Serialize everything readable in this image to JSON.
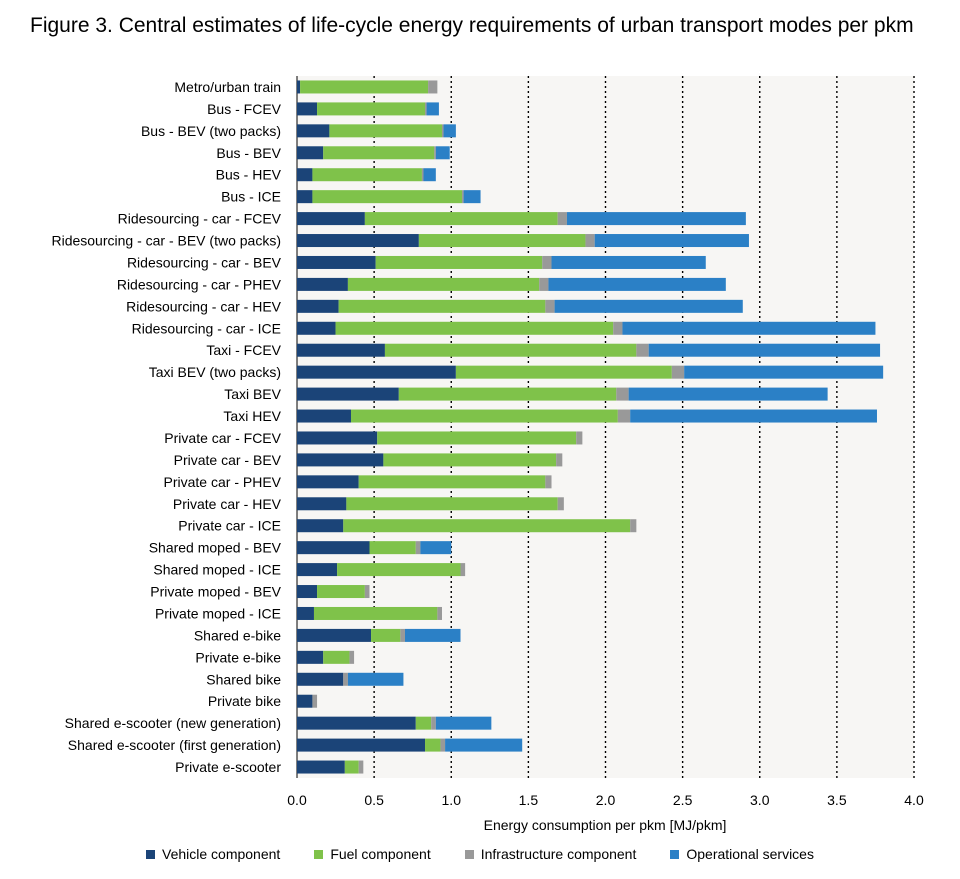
{
  "figure_title": "Figure 3. Central estimates of life-cycle energy requirements of urban transport modes per pkm",
  "colors": {
    "vehicle": "#1b4478",
    "fuel": "#7fc24a",
    "infrastructure": "#999999",
    "operational": "#2b80c6",
    "plot_bg": "#f7f6f4"
  },
  "chart_data": {
    "type": "bar",
    "orientation": "horizontal",
    "stacked": true,
    "xlabel": "Energy consumption per pkm [MJ/pkm]",
    "ylabel": "",
    "xlim": [
      0,
      4.0
    ],
    "xticks": [
      "0.0",
      "0.5",
      "1.0",
      "1.5",
      "2.0",
      "2.5",
      "3.0",
      "3.5",
      "4.0"
    ],
    "grid": "vertical dotted",
    "legend_position": "bottom",
    "categories": [
      "Metro/urban train",
      "Bus - FCEV",
      "Bus - BEV (two packs)",
      "Bus - BEV",
      "Bus - HEV",
      "Bus - ICE",
      "Ridesourcing - car - FCEV",
      "Ridesourcing - car - BEV (two packs)",
      "Ridesourcing - car - BEV",
      "Ridesourcing - car - PHEV",
      "Ridesourcing - car - HEV",
      "Ridesourcing - car - ICE",
      "Taxi - FCEV",
      "Taxi  BEV (two packs)",
      "Taxi  BEV",
      "Taxi  HEV",
      "Private car - FCEV",
      "Private car - BEV",
      "Private car - PHEV",
      "Private car - HEV",
      "Private car - ICE",
      "Shared moped - BEV",
      "Shared moped - ICE",
      "Private moped - BEV",
      "Private moped - ICE",
      "Shared e-bike",
      "Private e-bike",
      "Shared bike",
      "Private bike",
      "Shared e-scooter (new generation)",
      "Shared e-scooter (first generation)",
      "Private e-scooter"
    ],
    "series": [
      {
        "name": "Vehicle component",
        "values": [
          0.02,
          0.13,
          0.21,
          0.17,
          0.1,
          0.1,
          0.44,
          0.79,
          0.51,
          0.33,
          0.27,
          0.25,
          0.57,
          1.03,
          0.66,
          0.35,
          0.52,
          0.56,
          0.4,
          0.32,
          0.3,
          0.47,
          0.26,
          0.13,
          0.11,
          0.48,
          0.17,
          0.3,
          0.1,
          0.77,
          0.83,
          0.31
        ]
      },
      {
        "name": "Fuel component",
        "values": [
          0.83,
          0.7,
          0.73,
          0.72,
          0.71,
          0.97,
          1.25,
          1.08,
          1.08,
          1.24,
          1.34,
          1.8,
          1.63,
          1.4,
          1.41,
          1.73,
          1.29,
          1.12,
          1.21,
          1.37,
          1.86,
          0.3,
          0.8,
          0.31,
          0.8,
          0.19,
          0.17,
          0.0,
          0.0,
          0.1,
          0.1,
          0.09
        ]
      },
      {
        "name": "Infrastructure component",
        "values": [
          0.06,
          0.01,
          0.01,
          0.01,
          0.01,
          0.01,
          0.06,
          0.06,
          0.06,
          0.06,
          0.06,
          0.06,
          0.08,
          0.08,
          0.08,
          0.08,
          0.04,
          0.04,
          0.04,
          0.04,
          0.04,
          0.03,
          0.03,
          0.03,
          0.03,
          0.03,
          0.03,
          0.03,
          0.03,
          0.03,
          0.03,
          0.03
        ]
      },
      {
        "name": "Operational services",
        "values": [
          0.0,
          0.08,
          0.08,
          0.09,
          0.08,
          0.11,
          1.16,
          1.0,
          1.0,
          1.15,
          1.22,
          1.64,
          1.5,
          1.29,
          1.29,
          1.6,
          0.0,
          0.0,
          0.0,
          0.0,
          0.0,
          0.2,
          0.0,
          0.0,
          0.0,
          0.36,
          0.0,
          0.36,
          0.0,
          0.36,
          0.5,
          0.0
        ]
      }
    ]
  }
}
